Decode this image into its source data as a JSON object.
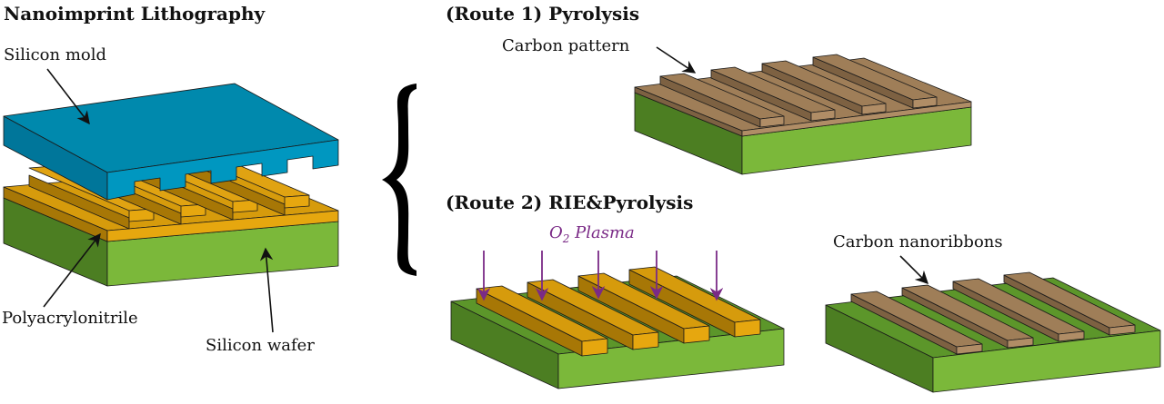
{
  "titles": {
    "nanoimprint": "Nanoimprint Lithography",
    "route1": "(Route 1) Pyrolysis",
    "route2": "(Route 2) RIE&Pyrolysis"
  },
  "labels": {
    "silicon_mold": "Silicon mold",
    "polyacrylonitrile": "Polyacrylonitrile",
    "silicon_wafer": "Silicon wafer",
    "carbon_pattern": "Carbon pattern",
    "o2_plasma_main": "O",
    "o2_plasma_sub": "2",
    "o2_plasma_word": " Plasma",
    "carbon_nanoribbons": "Carbon nanoribbons"
  },
  "colors": {
    "mold_top": "#0089ad",
    "mold_front": "#0097c0",
    "mold_side": "#00769a",
    "pan_top": "#d69b0c",
    "pan_front": "#e6a70f",
    "pan_side": "#a77706",
    "pan_ridge_top": "#e0a312",
    "wafer_top": "#5c962a",
    "wafer_front": "#7bb83a",
    "wafer_side": "#4c7e22",
    "carbon_top": "#9f7e58",
    "carbon_front": "#b08d66",
    "carbon_side": "#7d6142",
    "plasma": "#7a2a86",
    "brace": "#000000"
  }
}
